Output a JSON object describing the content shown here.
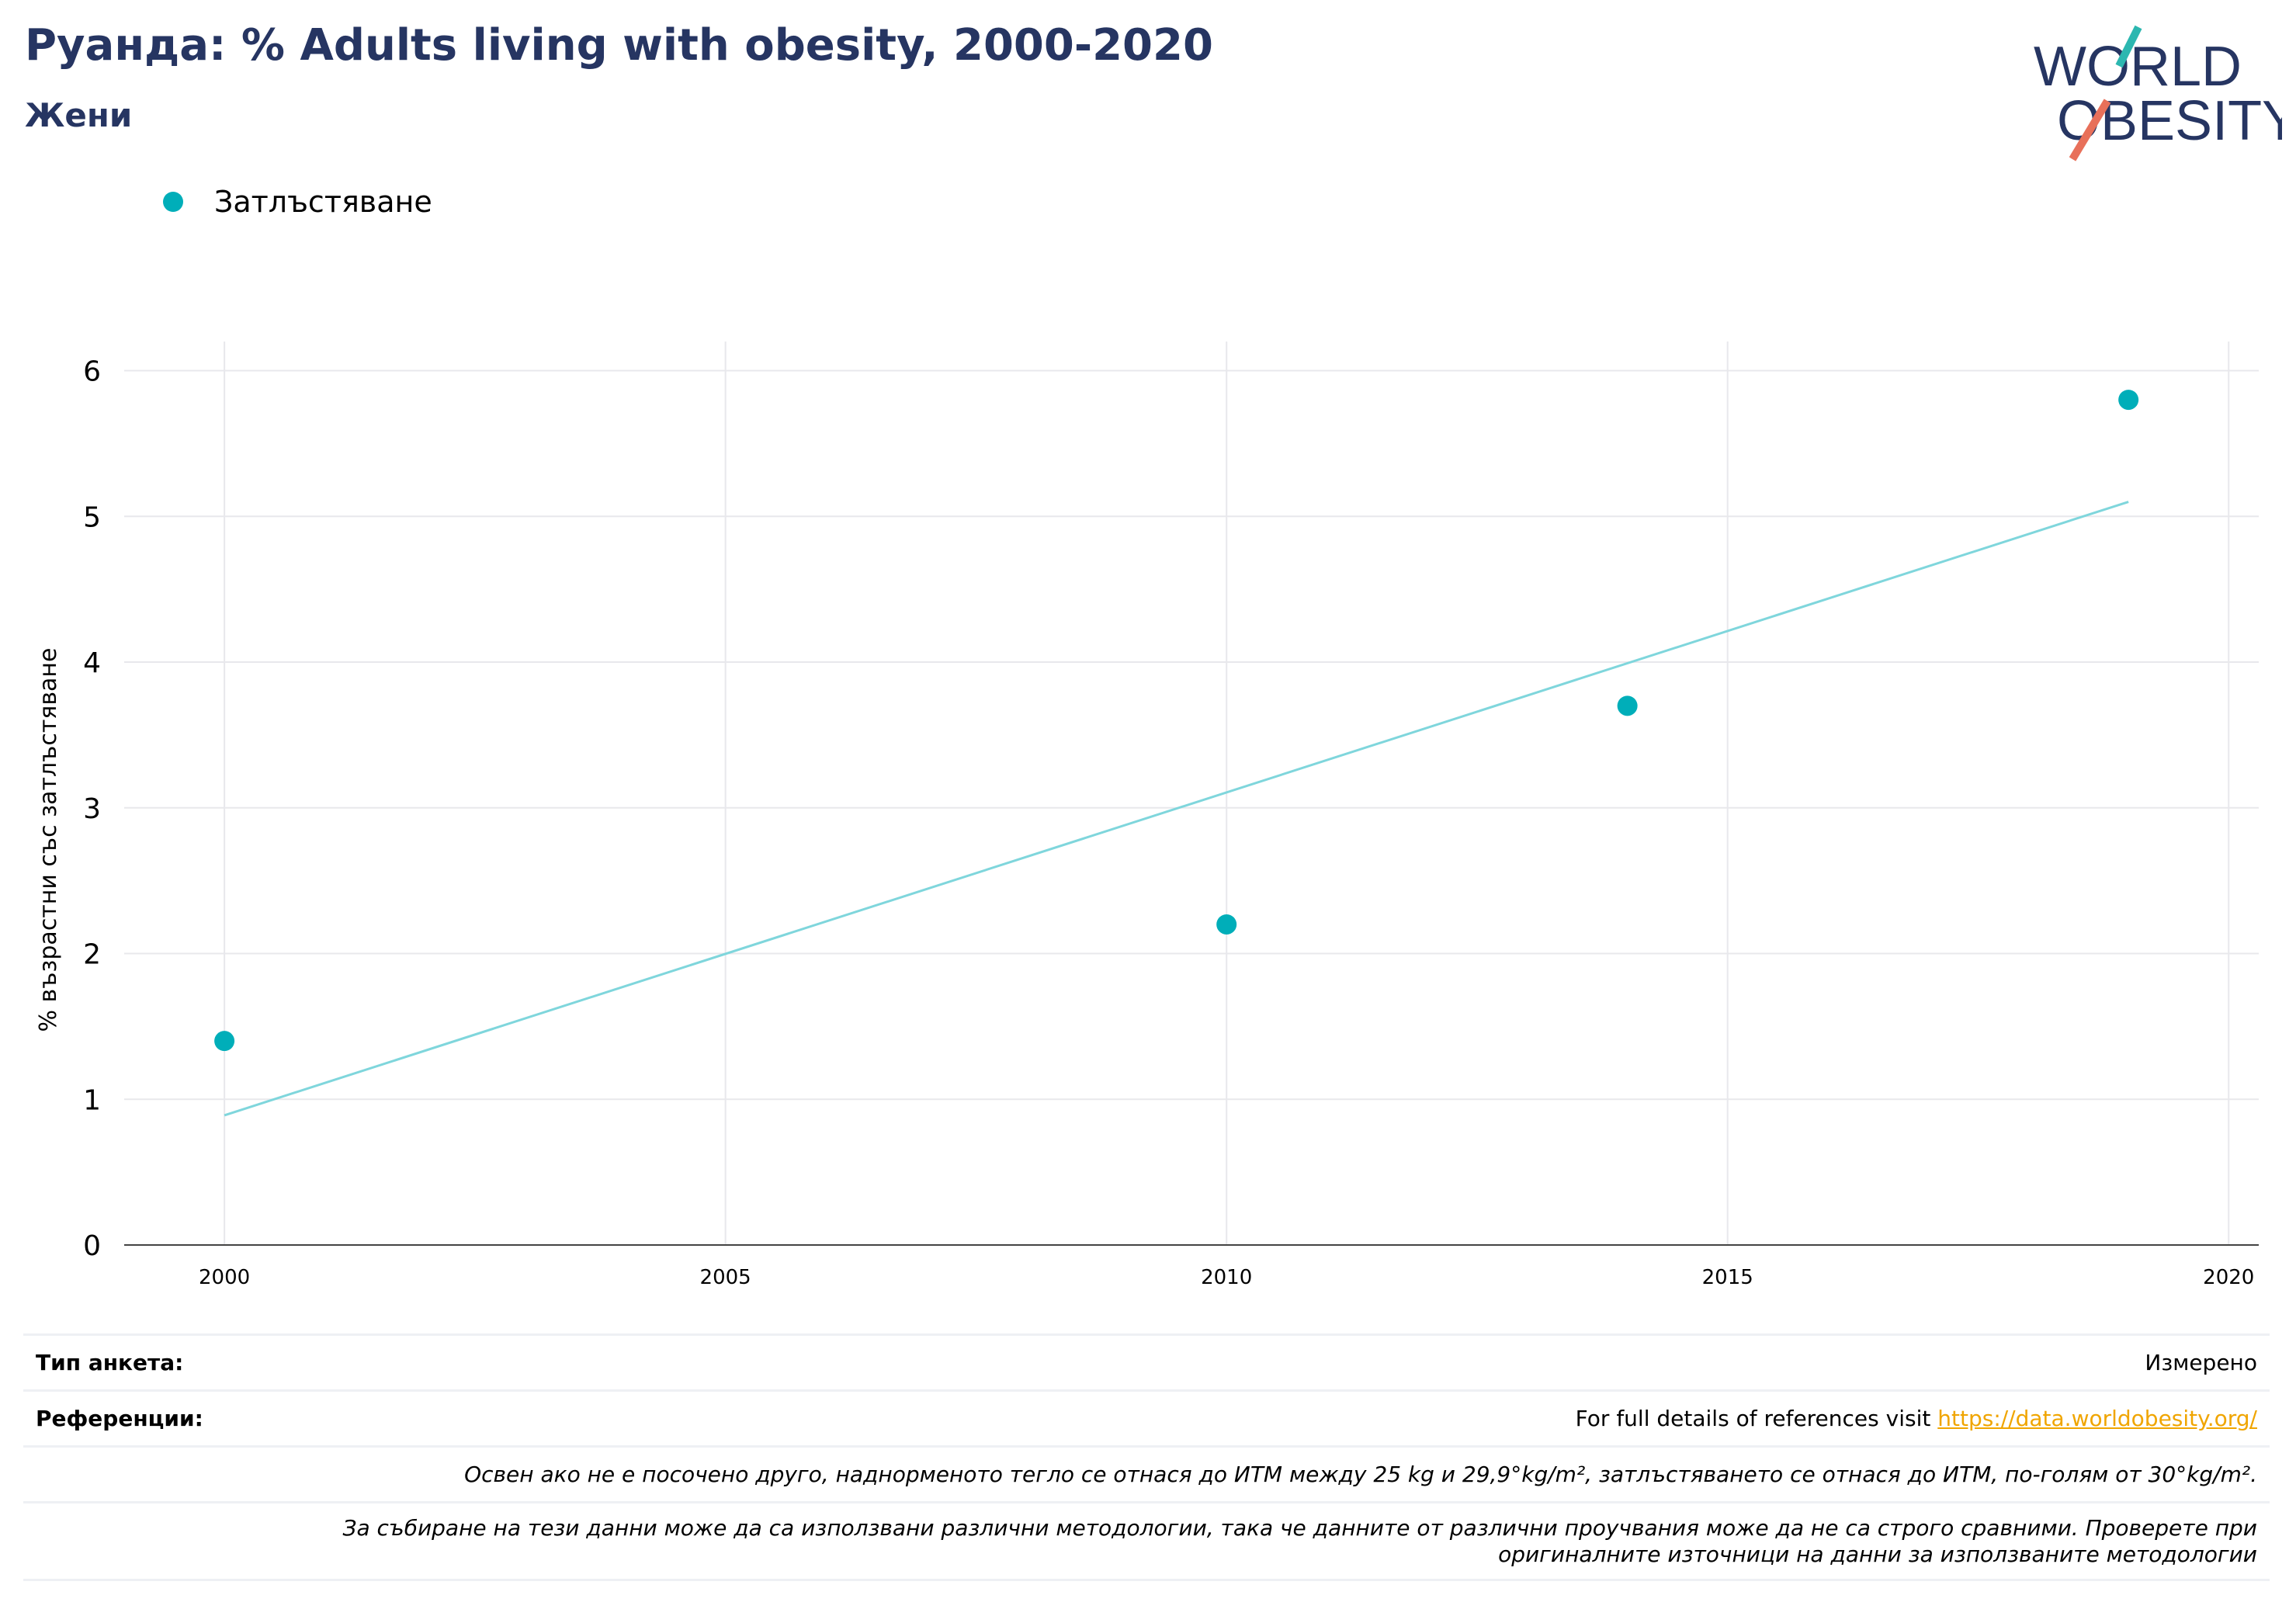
{
  "header": {
    "title": "Руанда: % Adults living with obesity, 2000-2020",
    "subtitle": "Жени"
  },
  "logo": {
    "line1": "WORLD",
    "line2": "OBESITY"
  },
  "colors": {
    "series": "#00aeb9",
    "trend": "#7fd6dc",
    "title": "#263562",
    "link": "#f0a500"
  },
  "chart_data": {
    "type": "scatter",
    "title": "Руанда: % Adults living with obesity, 2000-2020",
    "subtitle": "Жени",
    "xlabel": "",
    "ylabel": "% възрастни със затлъстяване",
    "xlim": [
      1999,
      2020.3
    ],
    "ylim": [
      0,
      6.2
    ],
    "xticks": [
      2000,
      2005,
      2010,
      2015,
      2020
    ],
    "yticks": [
      0,
      1,
      2,
      3,
      4,
      5,
      6
    ],
    "grid": true,
    "legend_position": "top-left",
    "series": [
      {
        "name": "Затлъстяване",
        "x": [
          2000,
          2010,
          2014,
          2019
        ],
        "y": [
          1.4,
          2.2,
          3.7,
          5.8
        ]
      }
    ],
    "trendline": {
      "x": [
        2000,
        2019
      ],
      "y": [
        0.89,
        5.1
      ]
    }
  },
  "footer": {
    "survey_type_label": "Тип анкета:",
    "survey_type_value": "Измерено",
    "references_label": "Референции:",
    "references_text": "For full details of references visit ",
    "references_link": "https://data.worldobesity.org/",
    "note1": "Освен ако не е посочено друго, наднорменото тегло се отнася до ИТМ между 25 kg и 29,9°kg/m², затлъстяването се отнася до ИТМ, по-голям от 30°kg/m².",
    "note2_line1": "За събиране на тези данни може да са използвани различни методологии, така че данните от различни проучвания може да не са строго сравними. Проверете при",
    "note2_line2": "оригиналните източници на данни за използваните методологии"
  }
}
